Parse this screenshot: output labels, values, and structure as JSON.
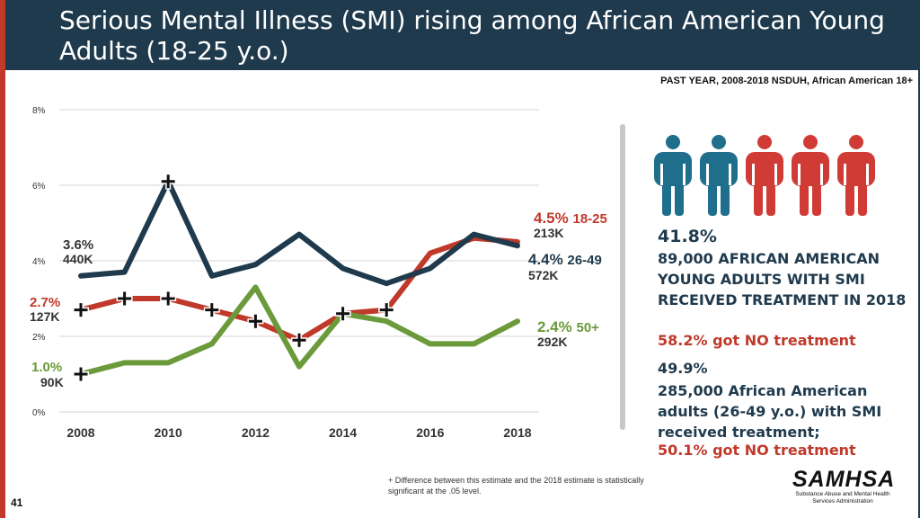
{
  "title": "Serious Mental Illness (SMI) rising among African American Young Adults (18-25 y.o.)",
  "source": "PAST YEAR, 2008-2018 NSDUH, African American 18+",
  "chart_data": {
    "type": "line",
    "x": [
      2008,
      2009,
      2010,
      2011,
      2012,
      2013,
      2014,
      2015,
      2016,
      2017,
      2018
    ],
    "xticks": [
      "2008",
      "2010",
      "2012",
      "2014",
      "2016",
      "2018"
    ],
    "yticks": [
      "0%",
      "2%",
      "4%",
      "6%",
      "8%"
    ],
    "ylim": [
      0,
      8
    ],
    "grid": true,
    "series": [
      {
        "name": "18-25",
        "color": "#c0392b",
        "values": [
          2.7,
          3.0,
          3.0,
          2.7,
          2.4,
          1.9,
          2.6,
          2.7,
          4.2,
          4.6,
          4.5
        ],
        "significant": [
          true,
          true,
          true,
          true,
          true,
          true,
          true,
          true,
          false,
          false,
          false
        ]
      },
      {
        "name": "26-49",
        "color": "#1f3a4d",
        "values": [
          3.6,
          3.7,
          6.1,
          3.6,
          3.9,
          4.7,
          3.8,
          3.4,
          3.8,
          4.7,
          4.4
        ],
        "significant": [
          false,
          false,
          true,
          false,
          false,
          false,
          false,
          false,
          false,
          false,
          false
        ]
      },
      {
        "name": "50+",
        "color": "#6a9a3a",
        "values": [
          1.0,
          1.3,
          1.3,
          1.8,
          3.3,
          1.2,
          2.6,
          2.4,
          1.8,
          1.8,
          2.4
        ],
        "significant": [
          true,
          false,
          false,
          false,
          false,
          false,
          true,
          false,
          false,
          false,
          false
        ]
      }
    ],
    "annotations": [
      {
        "id": "a1825",
        "pct": "4.5%",
        "group": "18-25",
        "count": "213K"
      },
      {
        "id": "a2649",
        "pct": "4.4%",
        "group": "26-49",
        "count": "572K"
      },
      {
        "id": "a50",
        "pct": "2.4%",
        "group": "50+",
        "count": "292K"
      },
      {
        "id": "s2649",
        "pct": "3.6%",
        "count": "440K"
      },
      {
        "id": "s1825",
        "pct": "2.7%",
        "count": "127K"
      },
      {
        "id": "s50",
        "pct": "1.0%",
        "count": "90K"
      }
    ]
  },
  "people_icons": {
    "count_blue": 2,
    "count_red": 3,
    "blue": "#1e6e8c",
    "red": "#d13b35"
  },
  "stats": {
    "pct1": "41.8%",
    "text1": "89,000 AFRICAN AMERICAN YOUNG ADULTS WITH SMI RECEIVED TREATMENT IN 2018",
    "no_treat1": "58.2% got NO treatment",
    "pct2": "49.9%",
    "text2": "285,000 African American adults (26-49 y.o.) with SMI received treatment;",
    "no_treat2": "50.1% got NO treatment"
  },
  "footnote": "+ Difference between this estimate and the 2018 estimate is statistically significant at the .05 level.",
  "logo": {
    "word": "SAMHSA",
    "sub": "Substance Abuse and Mental Health Services Administration"
  },
  "page_number": "41"
}
